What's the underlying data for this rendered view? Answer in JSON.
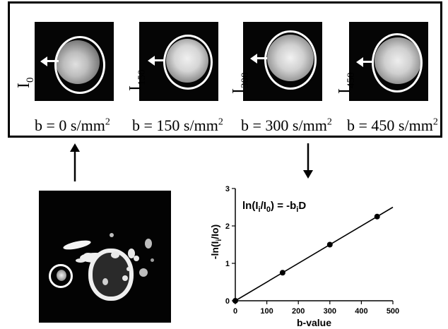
{
  "panels": [
    {
      "sub": "0",
      "b_label": "b = 0 s/mm",
      "sup": "2"
    },
    {
      "sub": "150",
      "b_label": "b = 150 s/mm",
      "sup": "2"
    },
    {
      "sub": "300",
      "b_label": "b = 300 s/mm",
      "sup": "2"
    },
    {
      "sub": "450",
      "b_label": "b = 450 s/mm",
      "sup": "2"
    }
  ],
  "i_letter": "I",
  "chart_data": {
    "type": "scatter",
    "x": [
      0,
      150,
      300,
      450
    ],
    "y": [
      0,
      0.75,
      1.5,
      2.25
    ],
    "fit_line": {
      "x": [
        0,
        500
      ],
      "y": [
        0,
        2.5
      ]
    },
    "xlabel": "b-value",
    "ylabel": "-ln(I",
    "ylabel_sub": "i",
    "ylabel_tail": "/Io)",
    "xlim": [
      0,
      500
    ],
    "ylim": [
      0,
      3
    ],
    "xticks": [
      0,
      100,
      200,
      300,
      400,
      500
    ],
    "yticks": [
      0,
      1,
      2,
      3
    ],
    "equation_a": "ln(I",
    "equation_sub1": "i",
    "equation_b": "/I",
    "equation_sub2": "0",
    "equation_c": ") = -b",
    "equation_sub3": "i",
    "equation_d": "D",
    "grid": false
  }
}
